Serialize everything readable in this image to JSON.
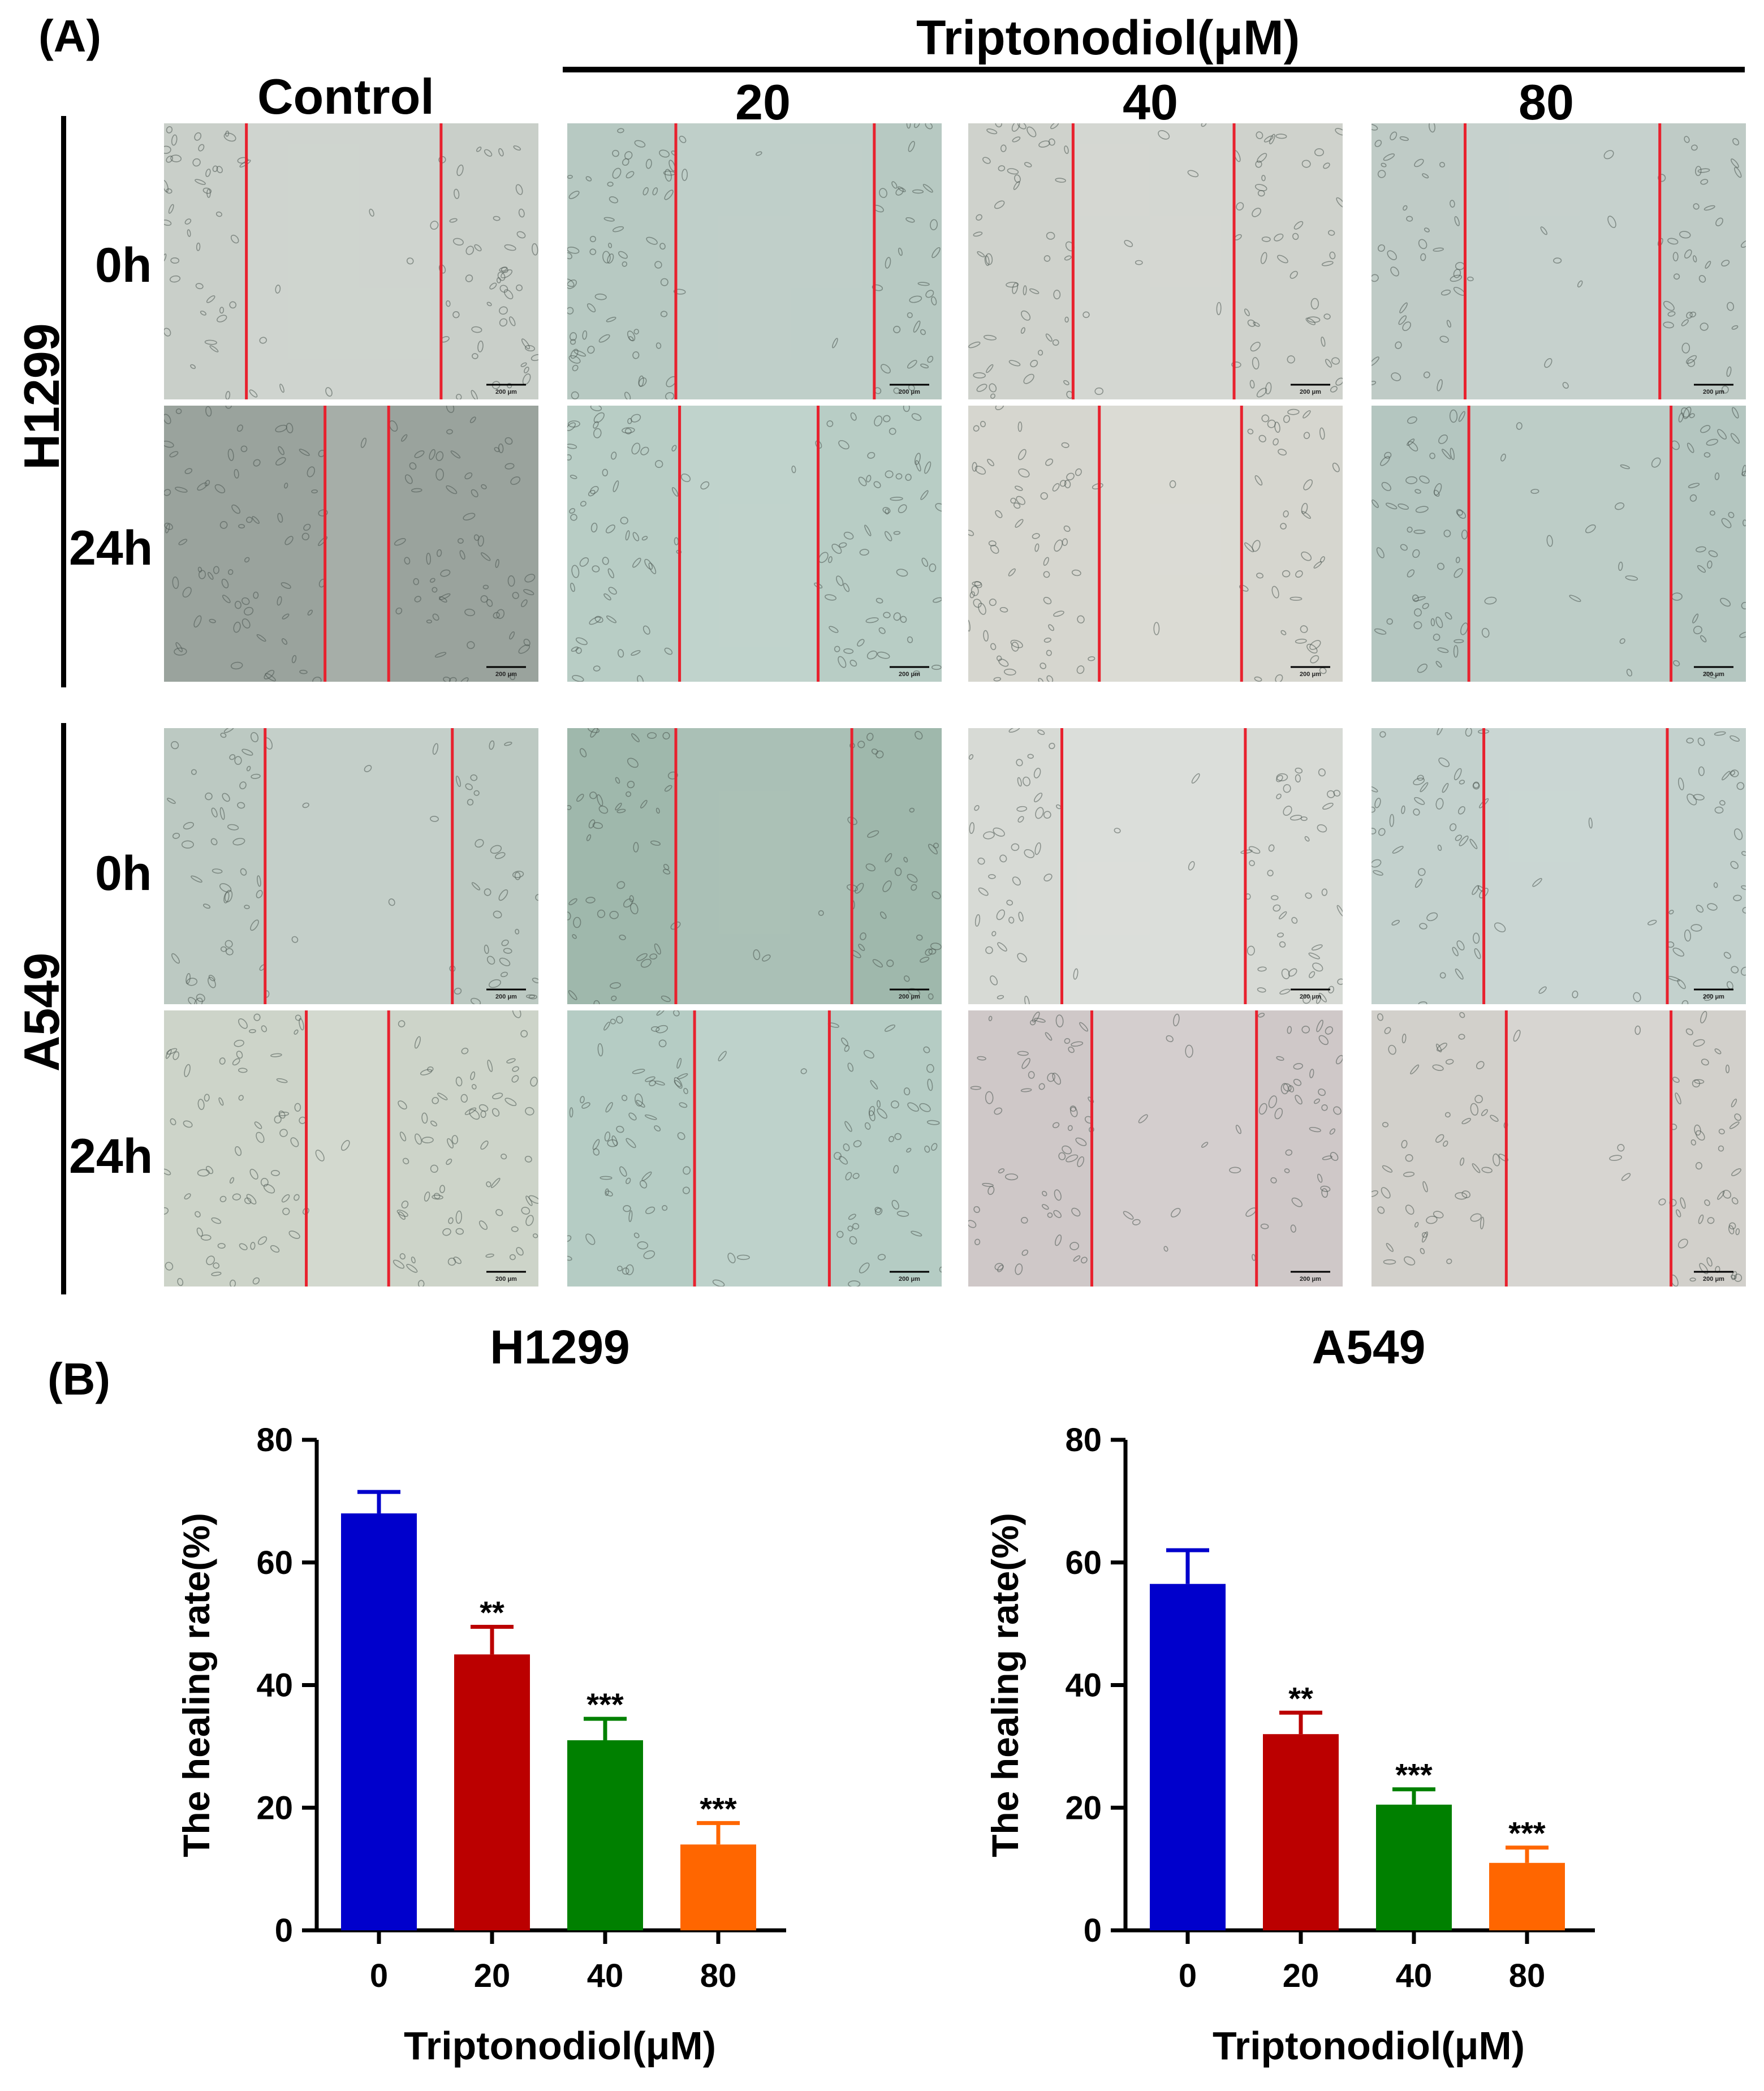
{
  "panel_a": {
    "label": "(A)",
    "treatment_header": "Triptonodiol(μM)",
    "columns": [
      "Control",
      "20",
      "40",
      "80"
    ],
    "cell_lines": [
      "H1299",
      "A549"
    ],
    "times": [
      "0h",
      "24h"
    ],
    "scale_bar_text": "200 μm",
    "tints": {
      "H1299": [
        [
          "#c9cfc9",
          "#b7c9c2",
          "#cfd2cc",
          "#bfcbc6"
        ],
        [
          "#9aa39d",
          "#b8cdc5",
          "#d6d6cf",
          "#b4c6c0"
        ]
      ],
      "A549": [
        [
          "#bcc9c2",
          "#9fb8ac",
          "#d7dad5",
          "#c3d1cd"
        ],
        [
          "#cdd4c9",
          "#b5ccc4",
          "#cfc8c8",
          "#d2d0cb"
        ]
      ]
    },
    "wound_edges": {
      "H1299": [
        [
          [
            0.22,
            0.74
          ],
          [
            0.29,
            0.82
          ],
          [
            0.28,
            0.71
          ],
          [
            0.25,
            0.77
          ]
        ],
        [
          [
            0.43,
            0.6
          ],
          [
            0.3,
            0.67
          ],
          [
            0.35,
            0.73
          ],
          [
            0.26,
            0.8
          ]
        ]
      ],
      "A549": [
        [
          [
            0.27,
            0.77
          ],
          [
            0.29,
            0.76
          ],
          [
            0.25,
            0.74
          ],
          [
            0.3,
            0.79
          ]
        ],
        [
          [
            0.38,
            0.6
          ],
          [
            0.34,
            0.7
          ],
          [
            0.33,
            0.77
          ],
          [
            0.36,
            0.8
          ]
        ]
      ]
    },
    "line_color": "#e8212e"
  },
  "panel_b": {
    "label": "(B)"
  },
  "chart_data": [
    {
      "type": "bar",
      "title": "H1299",
      "categories": [
        "0",
        "20",
        "40",
        "80"
      ],
      "values": [
        68,
        45,
        31,
        14
      ],
      "errors": [
        3.5,
        4.5,
        3.5,
        3.5
      ],
      "annotations": [
        "",
        "**",
        "***",
        "***"
      ],
      "colors": [
        "#0000cc",
        "#bb0000",
        "#008000",
        "#ff6600"
      ],
      "xlabel": "Triptonodiol(μM)",
      "ylabel": "The healing rate(%)",
      "ylim": [
        0,
        80
      ],
      "yticks": [
        "0",
        "20",
        "40",
        "60",
        "80"
      ]
    },
    {
      "type": "bar",
      "title": "A549",
      "categories": [
        "0",
        "20",
        "40",
        "80"
      ],
      "values": [
        56.5,
        32,
        20.5,
        11
      ],
      "errors": [
        5.5,
        3.5,
        2.5,
        2.5
      ],
      "annotations": [
        "",
        "**",
        "***",
        "***"
      ],
      "colors": [
        "#0000cc",
        "#bb0000",
        "#008000",
        "#ff6600"
      ],
      "xlabel": "Triptonodiol(μM)",
      "ylabel": "The healing rate(%)",
      "ylim": [
        0,
        80
      ],
      "yticks": [
        "0",
        "20",
        "40",
        "60",
        "80"
      ]
    }
  ]
}
